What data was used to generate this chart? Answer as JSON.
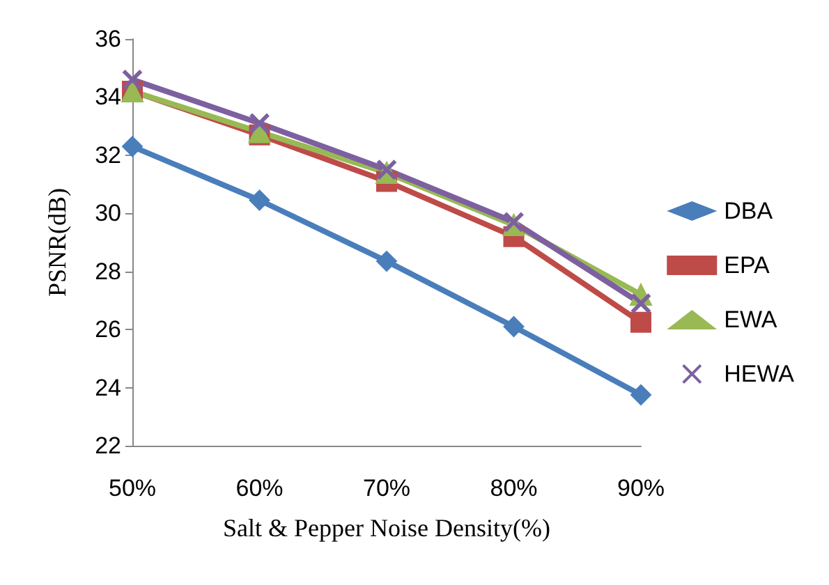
{
  "chart_data": {
    "type": "line",
    "xlabel": "Salt & Pepper Noise Density(%)",
    "ylabel": "PSNR(dB)",
    "categories": [
      "50%",
      "60%",
      "70%",
      "80%",
      "90%"
    ],
    "series": [
      {
        "name": "DBA",
        "color": "#4a7ebb",
        "marker": "diamond",
        "values": [
          32.3,
          30.45,
          28.35,
          26.1,
          23.75
        ]
      },
      {
        "name": "EPA",
        "color": "#be4b48",
        "marker": "square",
        "values": [
          34.2,
          32.7,
          31.1,
          29.2,
          26.25
        ]
      },
      {
        "name": "EWA",
        "color": "#98b954",
        "marker": "triangle",
        "values": [
          34.2,
          32.8,
          31.4,
          29.6,
          27.2
        ]
      },
      {
        "name": "HEWA",
        "color": "#7d60a0",
        "marker": "cross",
        "values": [
          34.6,
          33.1,
          31.5,
          29.7,
          26.9
        ]
      }
    ],
    "ylim": [
      22,
      36
    ],
    "yticks": [
      22,
      24,
      26,
      28,
      30,
      32,
      34,
      36
    ],
    "grid": false,
    "legend": "right",
    "line_style": "solid"
  }
}
